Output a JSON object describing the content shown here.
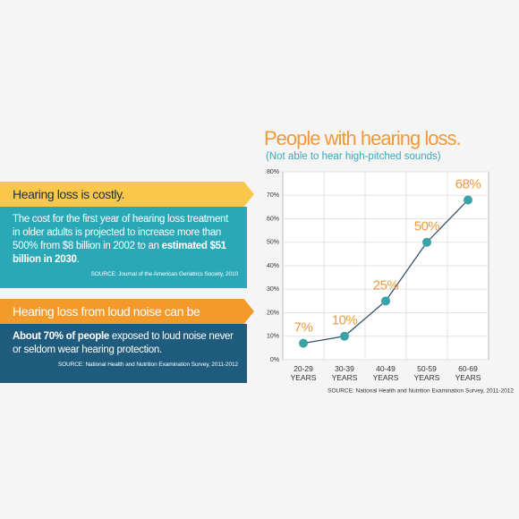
{
  "panels": [
    {
      "heading": "Hearing loss is costly.",
      "body": "The cost for the first year of hearing loss treatment in older adults is projected to increase more than 500% from $8 billion in 2002 to an ",
      "body_bold": "estimated $51 billion in 2030",
      "body_end": ".",
      "source": "SOURCE:  Journal of the American Geriatrics Society, 2010"
    },
    {
      "heading": "Hearing loss from loud noise can be prevented.",
      "body_bold": "About 70% of people",
      "body": " exposed to loud noise never or seldom wear hearing protection.",
      "source": "SOURCE: National Health and Nutrition Examination Survey, 2011-2012"
    }
  ],
  "chart_data": {
    "type": "line",
    "title": "People with hearing loss.",
    "subtitle": "(Not able to hear high-pitched sounds)",
    "categories": [
      "20-29 YEARS",
      "30-39 YEARS",
      "40-49 YEARS",
      "50-59 YEARS",
      "60-69 YEARS"
    ],
    "values": [
      7,
      10,
      25,
      50,
      68
    ],
    "value_labels": [
      "7%",
      "10%",
      "25%",
      "50%",
      "68%"
    ],
    "color": "#2b4a6b",
    "marker_color": "#3aa3a8",
    "label_color": "#ef9a3a",
    "ylim": [
      0,
      80
    ],
    "yticks": [
      {
        "value": 0,
        "label": "0%"
      },
      {
        "value": 10,
        "label": "10%"
      },
      {
        "value": 20,
        "label": "20%"
      },
      {
        "value": 30,
        "label": "30%"
      },
      {
        "value": 40,
        "label": "40%"
      },
      {
        "value": 50,
        "label": "50%"
      },
      {
        "value": 60,
        "label": "60%"
      },
      {
        "value": 70,
        "label": "70%"
      },
      {
        "value": 80,
        "label": "80%"
      }
    ],
    "grid": true,
    "source": "SOURCE: National Health and Nutrition Examination Survey, 2011-2012"
  }
}
